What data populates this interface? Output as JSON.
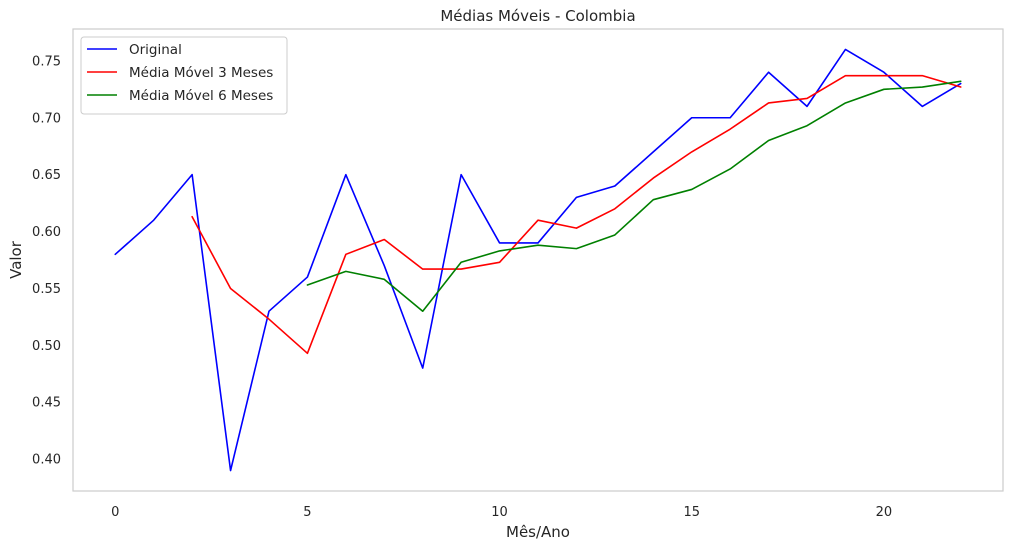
{
  "chart_data": {
    "type": "line",
    "title": "Médias Móveis - Colombia",
    "xlabel": "Mês/Ano",
    "ylabel": "Valor",
    "xlim": [
      -1.1,
      23.1
    ],
    "ylim": [
      0.372,
      0.778
    ],
    "xticks": [
      0,
      5,
      10,
      15,
      20
    ],
    "yticks": [
      0.4,
      0.45,
      0.5,
      0.55,
      0.6,
      0.65,
      0.7,
      0.75
    ],
    "grid": false,
    "legend_position": "top-left",
    "series": [
      {
        "name": "Original",
        "color": "#0000ff",
        "x": [
          0,
          1,
          2,
          3,
          4,
          5,
          6,
          7,
          8,
          9,
          10,
          11,
          12,
          13,
          14,
          15,
          16,
          17,
          18,
          19,
          20,
          21,
          22
        ],
        "values": [
          0.58,
          0.61,
          0.65,
          0.39,
          0.53,
          0.56,
          0.65,
          0.57,
          0.48,
          0.65,
          0.59,
          0.59,
          0.63,
          0.64,
          0.67,
          0.7,
          0.7,
          0.74,
          0.71,
          0.76,
          0.74,
          0.71,
          0.73
        ]
      },
      {
        "name": "Média Móvel 3 Meses",
        "color": "#ff0000",
        "x": [
          2,
          3,
          4,
          5,
          6,
          7,
          8,
          9,
          10,
          11,
          12,
          13,
          14,
          15,
          16,
          17,
          18,
          19,
          20,
          21,
          22
        ],
        "values": [
          0.613,
          0.55,
          0.523,
          0.493,
          0.58,
          0.593,
          0.567,
          0.567,
          0.573,
          0.61,
          0.603,
          0.62,
          0.647,
          0.67,
          0.69,
          0.713,
          0.717,
          0.737,
          0.737,
          0.737,
          0.727
        ]
      },
      {
        "name": "Média Móvel 6 Meses",
        "color": "#008000",
        "x": [
          5,
          6,
          7,
          8,
          9,
          10,
          11,
          12,
          13,
          14,
          15,
          16,
          17,
          18,
          19,
          20,
          21,
          22
        ],
        "values": [
          0.553,
          0.565,
          0.558,
          0.53,
          0.573,
          0.583,
          0.588,
          0.585,
          0.597,
          0.628,
          0.637,
          0.655,
          0.68,
          0.693,
          0.713,
          0.725,
          0.727,
          0.732
        ]
      }
    ]
  }
}
